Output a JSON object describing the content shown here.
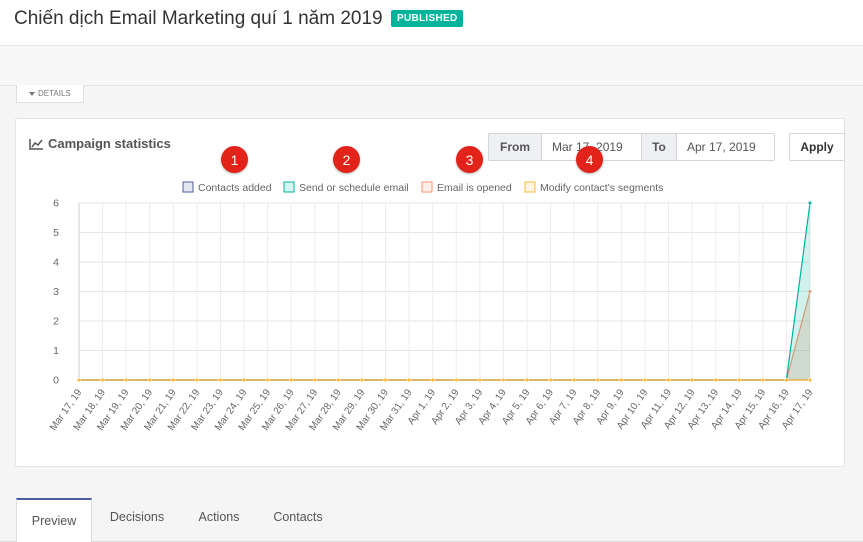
{
  "header": {
    "title": "Chiến dịch Email Marketing quí 1 năm 2019",
    "status_badge": "PUBLISHED"
  },
  "details_tab": {
    "label": "DETAILS"
  },
  "stats": {
    "title": "Campaign statistics",
    "icon": "line-chart-icon",
    "from_label": "From",
    "from_value": "Mar 17, 2019",
    "to_label": "To",
    "to_value": "Apr 17, 2019",
    "apply_label": "Apply"
  },
  "markers": [
    "1",
    "2",
    "3",
    "4"
  ],
  "tabs": [
    {
      "label": "Preview",
      "active": true
    },
    {
      "label": "Decisions",
      "active": false
    },
    {
      "label": "Actions",
      "active": false
    },
    {
      "label": "Contacts",
      "active": false
    }
  ],
  "colors": {
    "badge": "#00b49c",
    "marker": "#e2231a",
    "contacts_added": "#4e5d9d",
    "send_email": "#00b49c",
    "email_opened": "#fd9572",
    "modify_segments": "#fdb933"
  },
  "chart_data": {
    "type": "line",
    "title": "",
    "xlabel": "",
    "ylabel": "",
    "ylim": [
      0,
      6
    ],
    "yticks": [
      0,
      1,
      2,
      3,
      4,
      5,
      6
    ],
    "grid": true,
    "legend_position": "top-center",
    "categories": [
      "Mar 17, 19",
      "Mar 18, 19",
      "Mar 19, 19",
      "Mar 20, 19",
      "Mar 21, 19",
      "Mar 22, 19",
      "Mar 23, 19",
      "Mar 24, 19",
      "Mar 25, 19",
      "Mar 26, 19",
      "Mar 27, 19",
      "Mar 28, 19",
      "Mar 29, 19",
      "Mar 30, 19",
      "Mar 31, 19",
      "Apr 1, 19",
      "Apr 2, 19",
      "Apr 3, 19",
      "Apr 4, 19",
      "Apr 5, 19",
      "Apr 6, 19",
      "Apr 7, 19",
      "Apr 8, 19",
      "Apr 9, 19",
      "Apr 10, 19",
      "Apr 11, 19",
      "Apr 12, 19",
      "Apr 13, 19",
      "Apr 14, 19",
      "Apr 15, 19",
      "Apr 16, 19",
      "Apr 17, 19"
    ],
    "series": [
      {
        "name": "Contacts added",
        "color": "#4e5d9d",
        "values": [
          0,
          0,
          0,
          0,
          0,
          0,
          0,
          0,
          0,
          0,
          0,
          0,
          0,
          0,
          0,
          0,
          0,
          0,
          0,
          0,
          0,
          0,
          0,
          0,
          0,
          0,
          0,
          0,
          0,
          0,
          0,
          0
        ]
      },
      {
        "name": "Send or schedule email",
        "color": "#00b49c",
        "values": [
          0,
          0,
          0,
          0,
          0,
          0,
          0,
          0,
          0,
          0,
          0,
          0,
          0,
          0,
          0,
          0,
          0,
          0,
          0,
          0,
          0,
          0,
          0,
          0,
          0,
          0,
          0,
          0,
          0,
          0,
          0,
          6
        ]
      },
      {
        "name": "Email is opened",
        "color": "#fd9572",
        "values": [
          0,
          0,
          0,
          0,
          0,
          0,
          0,
          0,
          0,
          0,
          0,
          0,
          0,
          0,
          0,
          0,
          0,
          0,
          0,
          0,
          0,
          0,
          0,
          0,
          0,
          0,
          0,
          0,
          0,
          0,
          0,
          3
        ]
      },
      {
        "name": "Modify contact's segments",
        "color": "#fdb933",
        "values": [
          0,
          0,
          0,
          0,
          0,
          0,
          0,
          0,
          0,
          0,
          0,
          0,
          0,
          0,
          0,
          0,
          0,
          0,
          0,
          0,
          0,
          0,
          0,
          0,
          0,
          0,
          0,
          0,
          0,
          0,
          0,
          0
        ]
      }
    ]
  }
}
